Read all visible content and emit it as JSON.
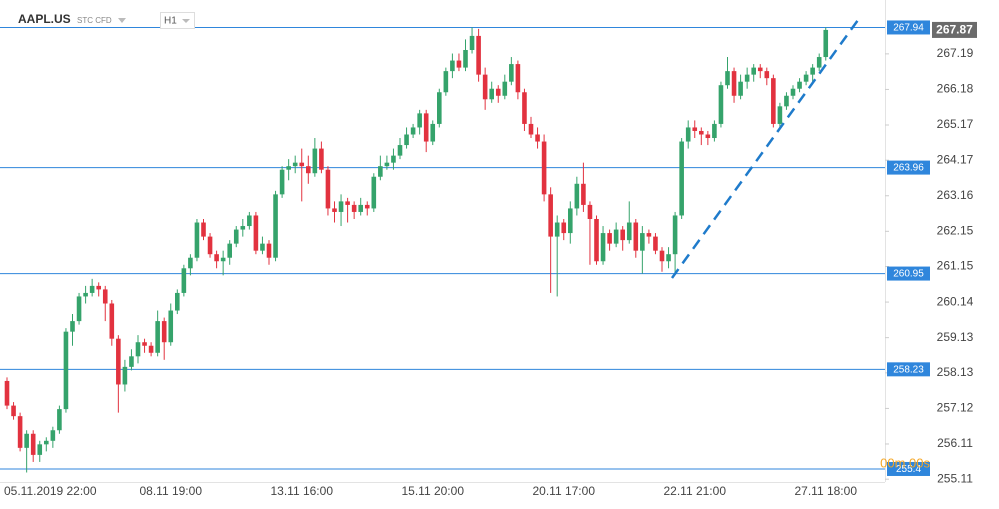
{
  "chart_data": {
    "type": "candlestick",
    "symbol": "AAPL.US",
    "instrument": "STC CFD",
    "interval": "H1",
    "timer": "00m 00s",
    "up_color": "#35a36b",
    "down_color": "#e2323f",
    "level_color": "#2f86dc",
    "current_color": "#6b6b6b",
    "ylim": [
      255.03,
      268.72
    ],
    "yticks": [
      255.11,
      256.11,
      257.12,
      258.13,
      259.13,
      260.14,
      261.15,
      262.15,
      263.16,
      264.17,
      265.17,
      266.18,
      267.19
    ],
    "levels": [
      267.94,
      263.96,
      260.95,
      258.23,
      255.4
    ],
    "current_price": 267.87,
    "categories": [
      null,
      null,
      null,
      null,
      null,
      "05.11.2019 22:00",
      null,
      null,
      null,
      null,
      null,
      null,
      null,
      null,
      null,
      null,
      null,
      null,
      null,
      null,
      null,
      null,
      null,
      null,
      null,
      "08.11 19:00",
      null,
      null,
      null,
      null,
      null,
      null,
      null,
      null,
      null,
      null,
      null,
      null,
      null,
      null,
      null,
      null,
      null,
      null,
      null,
      "13.11 16:00",
      null,
      null,
      null,
      null,
      null,
      null,
      null,
      null,
      null,
      null,
      null,
      null,
      null,
      null,
      null,
      null,
      null,
      null,
      null,
      "15.11 20:00",
      null,
      null,
      null,
      null,
      null,
      null,
      null,
      null,
      null,
      null,
      null,
      null,
      null,
      null,
      null,
      null,
      null,
      null,
      null,
      "20.11 17:00",
      null,
      null,
      null,
      null,
      null,
      null,
      null,
      null,
      null,
      null,
      null,
      null,
      null,
      null,
      null,
      null,
      null,
      null,
      null,
      "22.11 21:00",
      null,
      null,
      null,
      null,
      null,
      null,
      null,
      null,
      null,
      null,
      null,
      null,
      null,
      null,
      null,
      null,
      null,
      null,
      null,
      "27.11 18:00"
    ],
    "candles": [
      [
        257.9,
        258.0,
        257.1,
        257.2
      ],
      [
        257.2,
        257.3,
        256.8,
        256.9
      ],
      [
        256.9,
        257.0,
        255.9,
        256.0
      ],
      [
        256.0,
        256.5,
        255.3,
        256.4
      ],
      [
        256.4,
        256.5,
        255.6,
        255.8
      ],
      [
        255.8,
        256.2,
        255.6,
        256.1
      ],
      [
        256.1,
        256.3,
        255.9,
        256.2
      ],
      [
        256.2,
        256.6,
        256.0,
        256.5
      ],
      [
        256.5,
        257.2,
        256.4,
        257.1
      ],
      [
        257.1,
        259.4,
        257.0,
        259.3
      ],
      [
        259.3,
        259.8,
        258.9,
        259.6
      ],
      [
        259.6,
        260.4,
        259.5,
        260.3
      ],
      [
        260.3,
        260.6,
        260.1,
        260.4
      ],
      [
        260.4,
        260.8,
        260.3,
        260.6
      ],
      [
        260.6,
        260.7,
        260.3,
        260.5
      ],
      [
        260.5,
        260.6,
        259.6,
        260.1
      ],
      [
        260.1,
        260.2,
        258.9,
        259.1
      ],
      [
        259.1,
        259.2,
        257.0,
        257.8
      ],
      [
        257.8,
        258.5,
        257.6,
        258.3
      ],
      [
        258.3,
        258.8,
        258.2,
        258.6
      ],
      [
        258.6,
        259.2,
        258.4,
        259.0
      ],
      [
        259.0,
        259.1,
        258.7,
        258.9
      ],
      [
        258.9,
        259.0,
        258.6,
        258.7
      ],
      [
        258.7,
        259.9,
        258.6,
        259.6
      ],
      [
        259.6,
        259.7,
        258.5,
        259.0
      ],
      [
        259.0,
        260.1,
        258.9,
        259.9
      ],
      [
        259.9,
        260.5,
        259.8,
        260.4
      ],
      [
        260.4,
        261.2,
        260.3,
        261.1
      ],
      [
        261.1,
        261.5,
        260.9,
        261.4
      ],
      [
        261.4,
        262.5,
        261.3,
        262.4
      ],
      [
        262.4,
        262.5,
        261.9,
        262.0
      ],
      [
        262.0,
        262.1,
        261.4,
        261.5
      ],
      [
        261.5,
        261.6,
        261.1,
        261.3
      ],
      [
        261.3,
        261.6,
        260.9,
        261.4
      ],
      [
        261.4,
        261.9,
        261.2,
        261.8
      ],
      [
        261.8,
        262.3,
        261.7,
        262.2
      ],
      [
        262.2,
        262.5,
        262.0,
        262.3
      ],
      [
        262.3,
        262.7,
        262.2,
        262.6
      ],
      [
        262.6,
        262.7,
        261.5,
        261.6
      ],
      [
        261.6,
        262.0,
        261.5,
        261.8
      ],
      [
        261.8,
        261.9,
        261.2,
        261.4
      ],
      [
        261.4,
        263.3,
        261.3,
        263.2
      ],
      [
        263.2,
        264.0,
        263.1,
        263.9
      ],
      [
        263.9,
        264.2,
        263.6,
        264.0
      ],
      [
        264.0,
        264.3,
        263.8,
        264.1
      ],
      [
        264.1,
        264.5,
        263.0,
        264.0
      ],
      [
        264.0,
        264.3,
        263.5,
        263.8
      ],
      [
        263.8,
        264.8,
        263.7,
        264.5
      ],
      [
        264.5,
        264.7,
        263.8,
        263.9
      ],
      [
        263.9,
        264.0,
        262.6,
        262.8
      ],
      [
        262.8,
        263.0,
        262.4,
        262.7
      ],
      [
        262.7,
        263.2,
        262.3,
        263.0
      ],
      [
        263.0,
        263.1,
        262.4,
        262.9
      ],
      [
        262.9,
        263.0,
        262.5,
        262.7
      ],
      [
        262.7,
        263.1,
        262.6,
        262.9
      ],
      [
        262.9,
        263.0,
        262.6,
        262.8
      ],
      [
        262.8,
        263.8,
        262.7,
        263.7
      ],
      [
        263.7,
        264.3,
        263.6,
        264.0
      ],
      [
        264.0,
        264.3,
        263.9,
        264.1
      ],
      [
        264.1,
        264.5,
        263.9,
        264.3
      ],
      [
        264.3,
        264.8,
        264.2,
        264.6
      ],
      [
        264.6,
        265.1,
        264.5,
        264.9
      ],
      [
        264.9,
        265.2,
        264.8,
        265.1
      ],
      [
        265.1,
        265.6,
        264.9,
        265.5
      ],
      [
        265.5,
        265.6,
        264.4,
        264.7
      ],
      [
        264.7,
        265.3,
        264.6,
        265.2
      ],
      [
        265.2,
        266.2,
        265.1,
        266.1
      ],
      [
        266.1,
        266.8,
        266.0,
        266.7
      ],
      [
        266.7,
        267.2,
        266.5,
        267.0
      ],
      [
        267.0,
        267.2,
        266.7,
        266.8
      ],
      [
        266.8,
        267.6,
        266.7,
        267.3
      ],
      [
        267.3,
        267.94,
        267.2,
        267.7
      ],
      [
        267.7,
        267.9,
        266.4,
        266.6
      ],
      [
        266.6,
        266.8,
        265.6,
        265.9
      ],
      [
        265.9,
        266.4,
        265.8,
        266.2
      ],
      [
        266.2,
        266.3,
        265.8,
        266.0
      ],
      [
        266.0,
        266.6,
        265.9,
        266.4
      ],
      [
        266.4,
        267.1,
        266.3,
        266.9
      ],
      [
        266.9,
        267.0,
        265.9,
        266.1
      ],
      [
        266.1,
        266.2,
        265.0,
        265.2
      ],
      [
        265.2,
        265.4,
        264.8,
        264.9
      ],
      [
        264.9,
        265.1,
        264.5,
        264.7
      ],
      [
        264.7,
        264.9,
        263.0,
        263.2
      ],
      [
        263.2,
        263.4,
        260.4,
        262.0
      ],
      [
        262.0,
        262.6,
        260.3,
        262.4
      ],
      [
        262.4,
        262.5,
        261.9,
        262.1
      ],
      [
        262.1,
        263.0,
        261.8,
        262.8
      ],
      [
        262.8,
        263.7,
        262.6,
        263.5
      ],
      [
        263.5,
        264.1,
        262.7,
        262.9
      ],
      [
        262.9,
        263.0,
        261.2,
        262.5
      ],
      [
        262.5,
        262.6,
        261.2,
        261.3
      ],
      [
        261.3,
        262.3,
        261.2,
        262.1
      ],
      [
        262.1,
        262.2,
        261.6,
        261.8
      ],
      [
        261.8,
        262.4,
        261.7,
        262.2
      ],
      [
        262.2,
        262.3,
        261.6,
        261.9
      ],
      [
        261.9,
        263.0,
        261.8,
        262.4
      ],
      [
        262.4,
        262.5,
        261.4,
        261.6
      ],
      [
        261.6,
        262.3,
        260.95,
        262.1
      ],
      [
        262.1,
        262.2,
        261.8,
        262.0
      ],
      [
        262.0,
        262.1,
        261.5,
        261.6
      ],
      [
        261.6,
        261.7,
        261.0,
        261.3
      ],
      [
        261.3,
        261.7,
        261.1,
        261.5
      ],
      [
        261.5,
        262.7,
        260.95,
        262.6
      ],
      [
        262.6,
        264.8,
        262.5,
        264.7
      ],
      [
        264.7,
        265.3,
        264.5,
        265.1
      ],
      [
        265.1,
        265.3,
        264.8,
        265.0
      ],
      [
        265.0,
        265.1,
        264.6,
        264.9
      ],
      [
        264.9,
        265.0,
        264.6,
        264.8
      ],
      [
        264.8,
        265.3,
        264.7,
        265.2
      ],
      [
        265.2,
        266.4,
        265.1,
        266.3
      ],
      [
        266.3,
        267.1,
        266.2,
        266.7
      ],
      [
        266.7,
        266.8,
        265.8,
        266.0
      ],
      [
        266.0,
        266.6,
        265.9,
        266.4
      ],
      [
        266.4,
        266.8,
        266.2,
        266.6
      ],
      [
        266.6,
        266.9,
        266.4,
        266.8
      ],
      [
        266.8,
        266.9,
        266.5,
        266.7
      ],
      [
        266.7,
        266.8,
        266.3,
        266.5
      ],
      [
        266.5,
        266.6,
        265.1,
        265.2
      ],
      [
        265.2,
        265.8,
        265.1,
        265.7
      ],
      [
        265.7,
        266.1,
        265.6,
        266.0
      ],
      [
        266.0,
        266.3,
        265.9,
        266.2
      ],
      [
        266.2,
        266.5,
        266.1,
        266.4
      ],
      [
        266.4,
        266.7,
        266.3,
        266.6
      ],
      [
        266.6,
        266.9,
        266.4,
        266.8
      ],
      [
        266.8,
        267.2,
        266.7,
        267.1
      ],
      [
        267.1,
        267.94,
        267.0,
        267.87
      ]
    ]
  }
}
